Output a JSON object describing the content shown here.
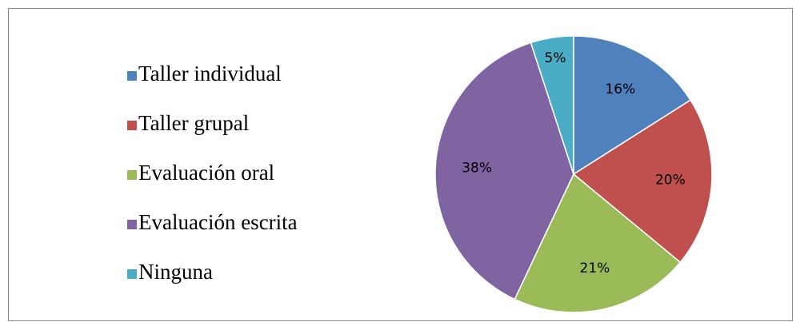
{
  "chart_data": {
    "type": "pie",
    "categories": [
      "Taller individual",
      "Taller grupal",
      "Evaluación oral",
      "Evaluación escrita",
      "Ninguna"
    ],
    "values": [
      16,
      20,
      21,
      38,
      5
    ],
    "value_labels": [
      "16%",
      "20%",
      "21%",
      "38%",
      "5%"
    ],
    "colors": [
      "#4f81bd",
      "#c0504d",
      "#9bbb59",
      "#8064a2",
      "#4bacc6"
    ],
    "legend": "left"
  }
}
